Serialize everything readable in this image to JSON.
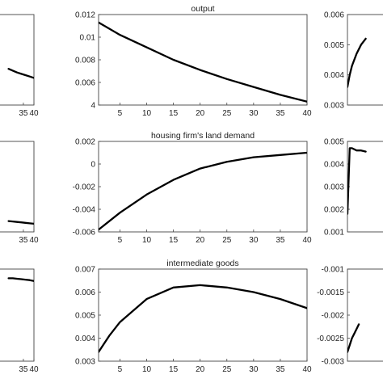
{
  "chart_data": [
    {
      "type": "line",
      "title": "",
      "xlim": [
        1,
        40
      ],
      "ylim": [
        null,
        null
      ],
      "x_ticks": [
        "35",
        "40"
      ],
      "y_ticks": [],
      "series": [
        {
          "x": [
            28,
            30,
            32,
            34,
            36,
            38,
            40
          ],
          "y": [
            0.4,
            0.38,
            0.36,
            0.345,
            0.33,
            0.315,
            0.3
          ]
        }
      ],
      "style": {
        "color": "#000000",
        "grid": false,
        "box": true
      }
    },
    {
      "type": "line",
      "title": "output",
      "xlim": [
        1,
        40
      ],
      "ylim": [
        0.004,
        0.012
      ],
      "x_ticks": [
        "5",
        "10",
        "15",
        "20",
        "25",
        "30",
        "35",
        "40"
      ],
      "y_ticks": [
        "0.012",
        "0.01",
        "0.008",
        "0.006",
        "4"
      ],
      "series": [
        {
          "x": [
            1,
            5,
            10,
            15,
            20,
            25,
            30,
            35,
            40
          ],
          "y": [
            0.0113,
            0.0102,
            0.0091,
            0.008,
            0.0071,
            0.0063,
            0.0056,
            0.0049,
            0.0043
          ]
        }
      ],
      "style": {
        "color": "#000000",
        "grid": false,
        "box": true
      }
    },
    {
      "type": "line",
      "title": "",
      "xlim": [
        1,
        40
      ],
      "ylim": [
        0.003,
        0.006
      ],
      "x_ticks": [],
      "y_ticks": [
        "0.006",
        "0.005",
        "0.004",
        "0.003"
      ],
      "series": [
        {
          "x": [
            1,
            2,
            3,
            5,
            7,
            9
          ],
          "y": [
            0.0036,
            0.004,
            0.0043,
            0.0047,
            0.005,
            0.0052
          ]
        }
      ],
      "style": {
        "color": "#000000",
        "grid": false,
        "box": true
      }
    },
    {
      "type": "line",
      "title": "",
      "xlim": [
        1,
        40
      ],
      "ylim": [
        null,
        null
      ],
      "x_ticks": [
        "35",
        "40"
      ],
      "y_ticks": [],
      "series": [
        {
          "x": [
            28,
            30,
            32,
            34,
            36,
            38,
            40
          ],
          "y": [
            0.12,
            0.115,
            0.11,
            0.105,
            0.1,
            0.095,
            0.09
          ]
        }
      ],
      "style": {
        "color": "#000000",
        "grid": false,
        "box": true
      }
    },
    {
      "type": "line",
      "title": "housing firm's land demand",
      "xlim": [
        1,
        40
      ],
      "ylim": [
        -0.006,
        0.002
      ],
      "x_ticks": [
        "5",
        "10",
        "15",
        "20",
        "25",
        "30",
        "35",
        "40"
      ],
      "y_ticks": [
        "0.002",
        "0",
        "-0.002",
        "-0.004",
        "-0.006"
      ],
      "series": [
        {
          "x": [
            1,
            5,
            10,
            15,
            20,
            25,
            30,
            35,
            40
          ],
          "y": [
            -0.0058,
            -0.0043,
            -0.0027,
            -0.0014,
            -0.0004,
            0.0002,
            0.0006,
            0.0008,
            0.001
          ]
        }
      ],
      "style": {
        "color": "#000000",
        "grid": false,
        "box": true
      }
    },
    {
      "type": "line",
      "title": "",
      "xlim": [
        1,
        40
      ],
      "ylim": [
        0.001,
        0.005
      ],
      "x_ticks": [],
      "y_ticks": [
        "0.005",
        "0.004",
        "0.003",
        "0.002",
        "0.001"
      ],
      "series": [
        {
          "x": [
            1,
            2,
            3,
            5,
            7,
            9
          ],
          "y": [
            0.0018,
            0.0047,
            0.0047,
            0.0046,
            0.0046,
            0.00455
          ]
        }
      ],
      "style": {
        "color": "#000000",
        "grid": false,
        "box": true
      }
    },
    {
      "type": "line",
      "title": "",
      "xlim": [
        1,
        40
      ],
      "ylim": [
        null,
        null
      ],
      "x_ticks": [
        "35",
        "40"
      ],
      "y_ticks": [],
      "series": [
        {
          "x": [
            28,
            30,
            32,
            34,
            36,
            38,
            40
          ],
          "y": [
            0.9,
            0.9,
            0.895,
            0.89,
            0.885,
            0.88,
            0.87
          ]
        }
      ],
      "style": {
        "color": "#000000",
        "grid": false,
        "box": true
      }
    },
    {
      "type": "line",
      "title": "intermediate goods",
      "xlim": [
        1,
        40
      ],
      "ylim": [
        0.003,
        0.007
      ],
      "x_ticks": [
        "5",
        "10",
        "15",
        "20",
        "25",
        "30",
        "35",
        "40"
      ],
      "y_ticks": [
        "0.007",
        "0.006",
        "0.005",
        "0.004",
        "0.003"
      ],
      "series": [
        {
          "x": [
            1,
            3,
            5,
            10,
            15,
            20,
            25,
            30,
            35,
            40
          ],
          "y": [
            0.0034,
            0.0041,
            0.0047,
            0.0057,
            0.0062,
            0.0063,
            0.0062,
            0.006,
            0.0057,
            0.0053
          ]
        }
      ],
      "style": {
        "color": "#000000",
        "grid": false,
        "box": true
      }
    },
    {
      "type": "line",
      "title": "",
      "xlim": [
        1,
        40
      ],
      "ylim": [
        -0.003,
        -0.001
      ],
      "x_ticks": [],
      "y_ticks": [
        "-0.001",
        "-0.0015",
        "-0.002",
        "-0.0025",
        "-0.003"
      ],
      "series": [
        {
          "x": [
            1,
            2,
            3,
            4,
            5,
            6
          ],
          "y": [
            -0.0028,
            -0.00265,
            -0.0025,
            -0.0024,
            -0.0023,
            -0.0022
          ]
        }
      ],
      "style": {
        "color": "#000000",
        "grid": false,
        "box": true
      }
    }
  ]
}
